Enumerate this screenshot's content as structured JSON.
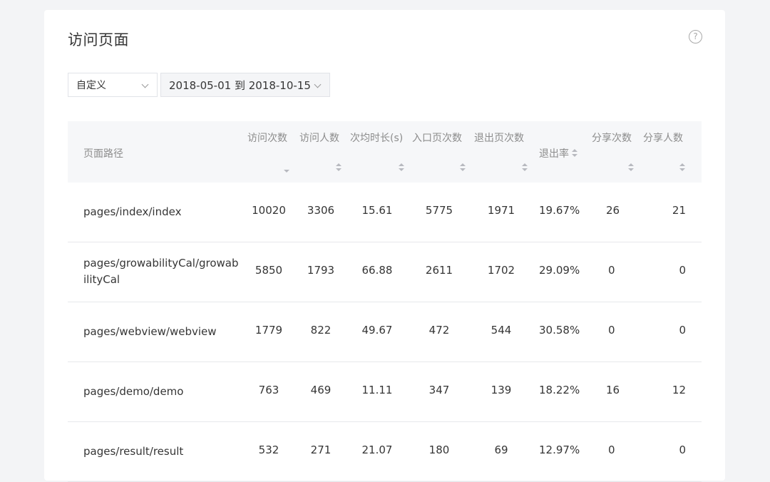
{
  "page": {
    "title": "访问页面",
    "help_glyph": "?"
  },
  "filters": {
    "preset": "自定义",
    "date_range": "2018-05-01 到 2018-10-15"
  },
  "table": {
    "columns": [
      {
        "key": "path",
        "label": "页面路径"
      },
      {
        "key": "visits",
        "label": "访问次数",
        "sort": "desc"
      },
      {
        "key": "visitors",
        "label": "访问人数",
        "sort": "none"
      },
      {
        "key": "avg_duration",
        "label": "次均时长(s)",
        "sort": "none"
      },
      {
        "key": "entry",
        "label": "入口页次数",
        "sort": "none"
      },
      {
        "key": "exit",
        "label": "退出页次数",
        "sort": "none"
      },
      {
        "key": "exit_rate",
        "label": "退出率",
        "sort": "none"
      },
      {
        "key": "shares",
        "label": "分享次数",
        "sort": "none"
      },
      {
        "key": "sharers",
        "label": "分享人数",
        "sort": "none"
      }
    ],
    "rows": [
      {
        "path": "pages/index/index",
        "visits": "10020",
        "visitors": "3306",
        "avg_duration": "15.61",
        "entry": "5775",
        "exit": "1971",
        "exit_rate": "19.67%",
        "shares": "26",
        "sharers": "21"
      },
      {
        "path": "pages/growabilityCal/growabilityCal",
        "visits": "5850",
        "visitors": "1793",
        "avg_duration": "66.88",
        "entry": "2611",
        "exit": "1702",
        "exit_rate": "29.09%",
        "shares": "0",
        "sharers": "0"
      },
      {
        "path": "pages/webview/webview",
        "visits": "1779",
        "visitors": "822",
        "avg_duration": "49.67",
        "entry": "472",
        "exit": "544",
        "exit_rate": "30.58%",
        "shares": "0",
        "sharers": "0"
      },
      {
        "path": "pages/demo/demo",
        "visits": "763",
        "visitors": "469",
        "avg_duration": "11.11",
        "entry": "347",
        "exit": "139",
        "exit_rate": "18.22%",
        "shares": "16",
        "sharers": "12"
      },
      {
        "path": "pages/result/result",
        "visits": "532",
        "visitors": "271",
        "avg_duration": "21.07",
        "entry": "180",
        "exit": "69",
        "exit_rate": "12.97%",
        "shares": "0",
        "sharers": "0"
      }
    ]
  }
}
